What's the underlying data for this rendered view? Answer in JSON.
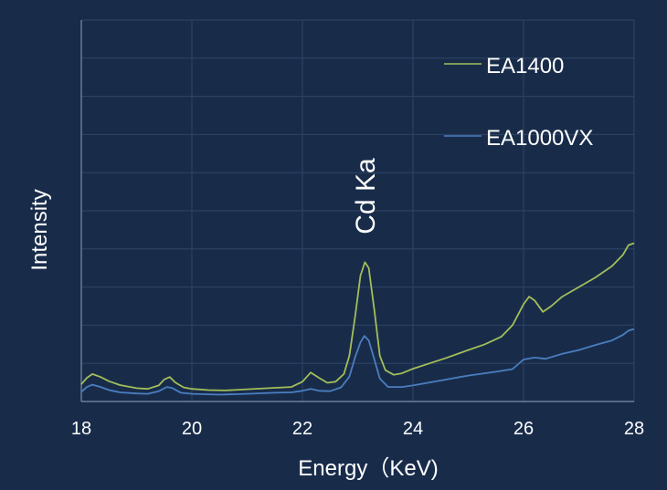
{
  "chart_data": {
    "type": "line",
    "title": "",
    "xlabel": "Energy（KeV)",
    "ylabel": "Intensity",
    "xlim": [
      18,
      28
    ],
    "ylim": [
      0,
      100
    ],
    "x_ticks": [
      "18",
      "20",
      "22",
      "24",
      "26",
      "28"
    ],
    "y_ticks_shown": false,
    "grid": true,
    "legend_position": "top-right",
    "annotation": {
      "text": "Cd Ka",
      "x": 23.1
    },
    "colors": {
      "background": "#182c4a",
      "grid": "#2f4566",
      "axis": "#7d8ea8"
    },
    "series": [
      {
        "name": "EA1400",
        "color": "#a3be5a",
        "points": [
          [
            18.0,
            4.5
          ],
          [
            18.1,
            6.2
          ],
          [
            18.2,
            7.2
          ],
          [
            18.35,
            6.4
          ],
          [
            18.5,
            5.3
          ],
          [
            18.7,
            4.3
          ],
          [
            19.0,
            3.5
          ],
          [
            19.2,
            3.3
          ],
          [
            19.4,
            4.2
          ],
          [
            19.5,
            5.8
          ],
          [
            19.6,
            6.4
          ],
          [
            19.7,
            5.0
          ],
          [
            19.85,
            3.7
          ],
          [
            20.0,
            3.3
          ],
          [
            20.3,
            3.0
          ],
          [
            20.6,
            2.9
          ],
          [
            21.0,
            3.2
          ],
          [
            21.5,
            3.6
          ],
          [
            21.8,
            3.8
          ],
          [
            22.0,
            5.2
          ],
          [
            22.15,
            7.6
          ],
          [
            22.3,
            6.2
          ],
          [
            22.45,
            4.9
          ],
          [
            22.6,
            5.2
          ],
          [
            22.75,
            7.2
          ],
          [
            22.85,
            12
          ],
          [
            22.95,
            22
          ],
          [
            23.05,
            33
          ],
          [
            23.13,
            36.5
          ],
          [
            23.2,
            35
          ],
          [
            23.3,
            24
          ],
          [
            23.4,
            12
          ],
          [
            23.5,
            8.2
          ],
          [
            23.65,
            7.0
          ],
          [
            23.8,
            7.4
          ],
          [
            24.0,
            8.6
          ],
          [
            24.3,
            10.0
          ],
          [
            24.6,
            11.4
          ],
          [
            25.0,
            13.5
          ],
          [
            25.3,
            15.0
          ],
          [
            25.6,
            17.0
          ],
          [
            25.8,
            20.0
          ],
          [
            26.0,
            25.5
          ],
          [
            26.1,
            27.5
          ],
          [
            26.2,
            26.5
          ],
          [
            26.35,
            23.5
          ],
          [
            26.5,
            25.0
          ],
          [
            26.7,
            27.5
          ],
          [
            27.0,
            30.0
          ],
          [
            27.3,
            32.5
          ],
          [
            27.6,
            35.5
          ],
          [
            27.8,
            38.5
          ],
          [
            27.9,
            41.0
          ],
          [
            28.0,
            41.5
          ]
        ]
      },
      {
        "name": "EA1000VX",
        "color": "#4a7ec0",
        "points": [
          [
            18.0,
            2.5
          ],
          [
            18.1,
            3.8
          ],
          [
            18.2,
            4.4
          ],
          [
            18.35,
            3.8
          ],
          [
            18.5,
            3.0
          ],
          [
            18.7,
            2.4
          ],
          [
            19.0,
            2.1
          ],
          [
            19.2,
            2.0
          ],
          [
            19.4,
            2.7
          ],
          [
            19.55,
            3.8
          ],
          [
            19.65,
            3.5
          ],
          [
            19.8,
            2.3
          ],
          [
            20.0,
            2.0
          ],
          [
            20.5,
            1.8
          ],
          [
            21.0,
            2.0
          ],
          [
            21.5,
            2.3
          ],
          [
            21.8,
            2.4
          ],
          [
            22.0,
            2.8
          ],
          [
            22.15,
            3.3
          ],
          [
            22.3,
            2.8
          ],
          [
            22.5,
            2.7
          ],
          [
            22.7,
            3.7
          ],
          [
            22.85,
            6.5
          ],
          [
            22.95,
            11.5
          ],
          [
            23.05,
            15.5
          ],
          [
            23.12,
            17.2
          ],
          [
            23.2,
            16.0
          ],
          [
            23.3,
            11.0
          ],
          [
            23.4,
            6.0
          ],
          [
            23.55,
            3.8
          ],
          [
            23.8,
            3.8
          ],
          [
            24.0,
            4.2
          ],
          [
            24.5,
            5.5
          ],
          [
            25.0,
            6.8
          ],
          [
            25.5,
            7.8
          ],
          [
            25.8,
            8.5
          ],
          [
            26.0,
            11.0
          ],
          [
            26.2,
            11.5
          ],
          [
            26.4,
            11.2
          ],
          [
            26.7,
            12.5
          ],
          [
            27.0,
            13.5
          ],
          [
            27.3,
            14.8
          ],
          [
            27.6,
            16.0
          ],
          [
            27.8,
            17.5
          ],
          [
            27.9,
            18.6
          ],
          [
            28.0,
            19.0
          ]
        ]
      }
    ]
  }
}
